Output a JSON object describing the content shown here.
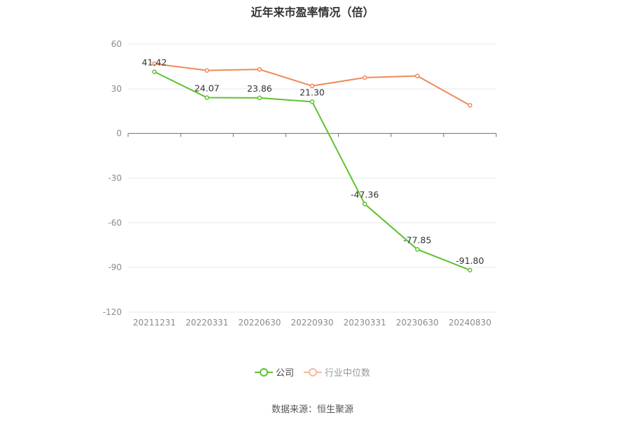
{
  "chart_data": {
    "type": "line",
    "title": "近年来市盈率情况（倍）",
    "categories": [
      "20211231",
      "20220331",
      "20220630",
      "20220930",
      "20230331",
      "20230630",
      "20240830"
    ],
    "ylim": [
      -120,
      60
    ],
    "yticks": [
      60,
      30,
      0,
      -30,
      -60,
      -90,
      -120
    ],
    "grid": true,
    "legend_position": "bottom",
    "series": [
      {
        "name": "公司",
        "color": "#5fc22e",
        "values": [
          41.42,
          24.07,
          23.86,
          21.3,
          -47.36,
          -77.85,
          -91.8
        ],
        "labels": [
          "41.42",
          "24.07",
          "23.86",
          "21.30",
          "-47.36",
          "-77.85",
          "-91.80"
        ]
      },
      {
        "name": "行业中位数",
        "color": "#f0895a",
        "values": [
          46.8,
          42.3,
          43.0,
          31.9,
          37.5,
          38.6,
          18.9
        ]
      }
    ],
    "source": "数据来源：恒生聚源"
  }
}
